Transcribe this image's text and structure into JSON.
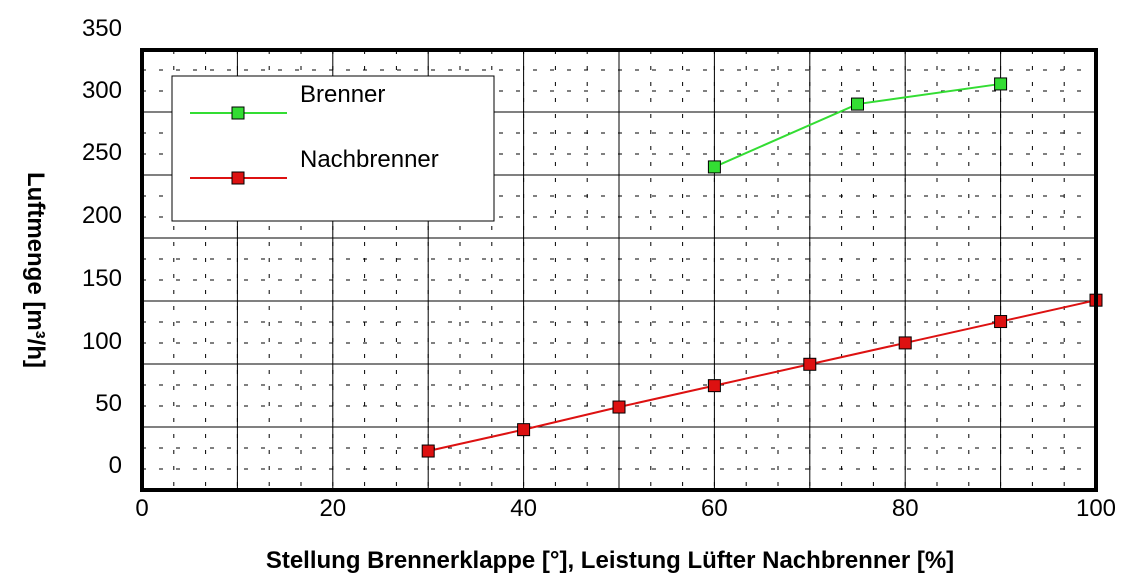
{
  "chart_data": {
    "type": "line",
    "title": "",
    "xlabel": "Stellung Brennerklappe [°], Leistung Lüfter Nachbrenner [%]",
    "ylabel": "Luftmenge [m³/h]",
    "xlim": [
      0,
      100
    ],
    "ylim": [
      -20,
      330
    ],
    "x_ticks": [
      0,
      20,
      40,
      60,
      80,
      100
    ],
    "y_ticks": [
      0,
      50,
      100,
      150,
      200,
      250,
      300,
      350
    ],
    "grid": true,
    "legend_position": "top-left",
    "series": [
      {
        "name": "Brenner",
        "color": "#33dd33",
        "marker": "square",
        "x": [
          60,
          75,
          90
        ],
        "y": [
          237,
          287,
          303
        ]
      },
      {
        "name": "Nachbrenner",
        "color": "#dd1111",
        "marker": "square",
        "x": [
          30,
          40,
          50,
          60,
          70,
          80,
          90,
          100
        ],
        "y": [
          11,
          28,
          46,
          63,
          80,
          97,
          114,
          131
        ]
      }
    ]
  }
}
